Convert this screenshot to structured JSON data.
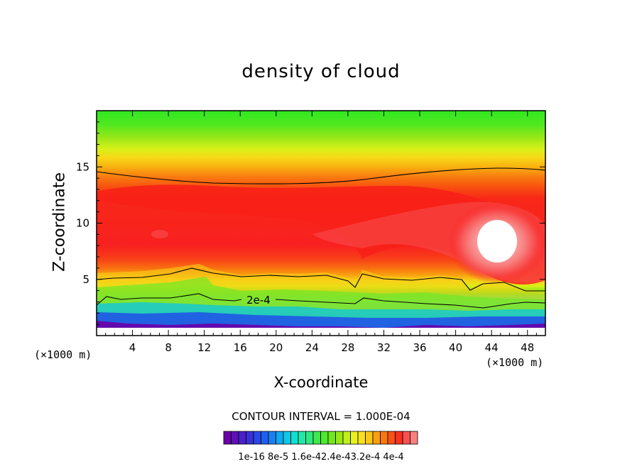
{
  "chart_data": {
    "type": "heatmap",
    "title": "density of cloud",
    "xlabel": "X-coordinate",
    "ylabel": "Z-coordinate",
    "x_unit_left": "(×1000 m)",
    "x_unit_right": "(×1000 m)",
    "xlim": [
      0,
      50
    ],
    "ylim": [
      0,
      20
    ],
    "x_ticks": [
      4,
      8,
      12,
      16,
      20,
      24,
      28,
      32,
      36,
      40,
      44,
      48
    ],
    "y_ticks": [
      5,
      10,
      15
    ],
    "contour_interval": "CONTOUR INTERVAL = 1.000E-04",
    "contour_label": "2e-4",
    "colorbar": {
      "n_levels": 26,
      "tick_labels": [
        "1e-16",
        "8e-5",
        "1.6e-4",
        "2.4e-4",
        "3.2e-4",
        "4e-4"
      ],
      "tick_label_text": "1e-16 8e-5 1.6e-42.4e-43.2e-4 4e-4",
      "colors": [
        "#6a00a8",
        "#5c10b8",
        "#4a20c8",
        "#3a30d8",
        "#2a48e8",
        "#1e60f0",
        "#1a80f0",
        "#10a8f0",
        "#10c8e8",
        "#10e0d0",
        "#20e8a8",
        "#30e880",
        "#40e850",
        "#50e830",
        "#70e820",
        "#98e818",
        "#c0f018",
        "#e8f020",
        "#f8e020",
        "#f8c818",
        "#f8a010",
        "#f87810",
        "#f85018",
        "#f83020",
        "#f85050",
        "#f88080"
      ]
    },
    "description_levels": {
      "max_region": [
        44,
        8.5
      ],
      "max_value": "4e-4"
    }
  }
}
